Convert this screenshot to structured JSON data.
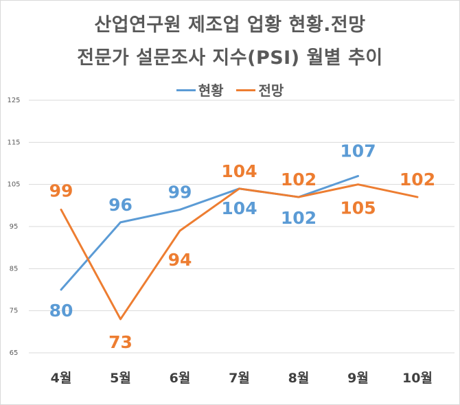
{
  "chart_data": {
    "type": "line",
    "title": "산업연구원 제조업 업황 현황.전망",
    "subtitle": "전문가 설문조사 지수(PSI) 월별 추이",
    "xlabel": "",
    "ylabel": "",
    "categories": [
      "4월",
      "5월",
      "6월",
      "7월",
      "8월",
      "9월",
      "10월"
    ],
    "ylim": [
      65,
      125
    ],
    "yticks": [
      125,
      115,
      105,
      95,
      85,
      75,
      65
    ],
    "grid": true,
    "legend_position": "top",
    "series": [
      {
        "name": "현황",
        "color": "#5b9bd5",
        "values": [
          80,
          96,
          99,
          104,
          102,
          107,
          null
        ],
        "labels": [
          "80",
          "96",
          "99",
          "104",
          "102",
          "107",
          ""
        ]
      },
      {
        "name": "전망",
        "color": "#ed7d31",
        "values": [
          99,
          73,
          94,
          104,
          102,
          105,
          102
        ],
        "labels": [
          "99",
          "73",
          "94",
          "104",
          "102",
          "105",
          "102"
        ]
      }
    ]
  }
}
